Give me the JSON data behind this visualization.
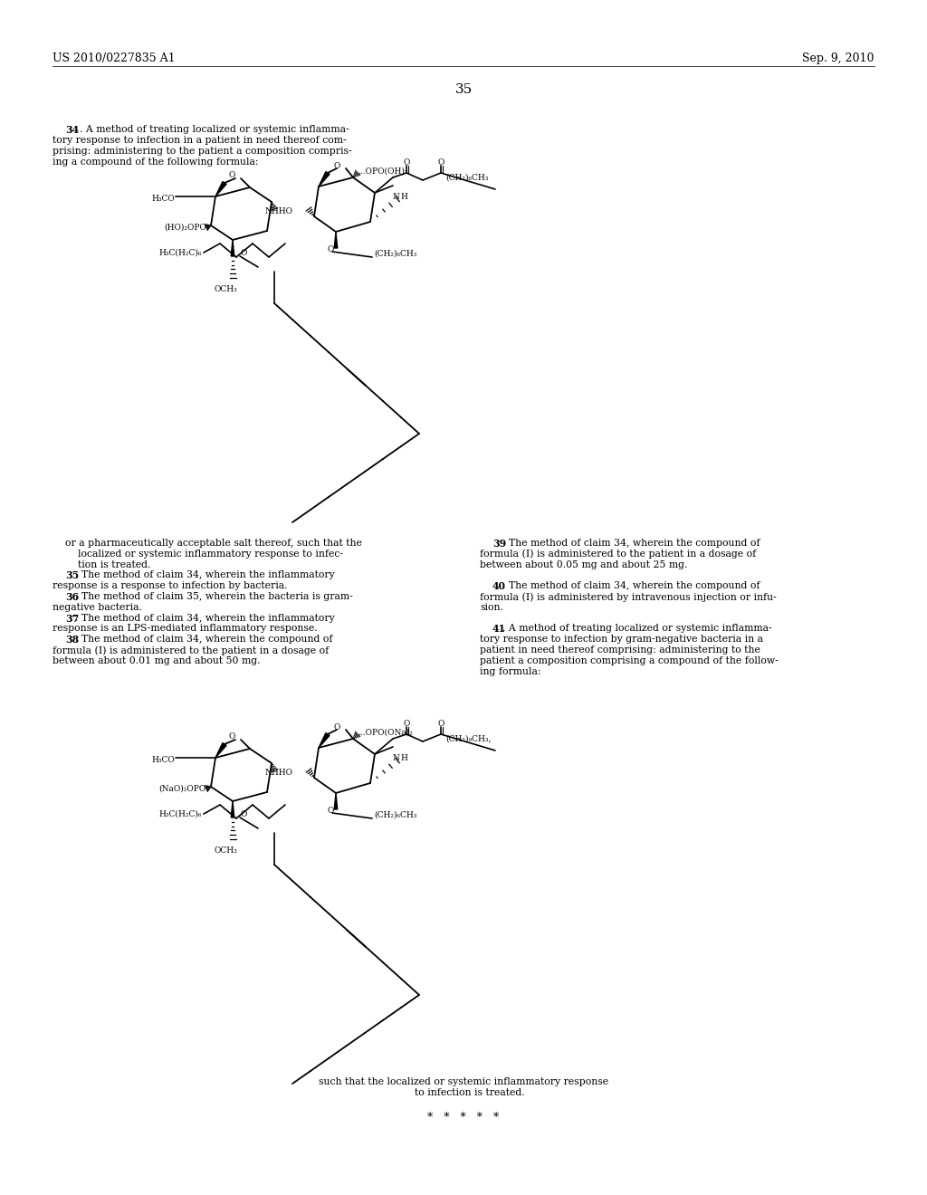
{
  "bg": "#ffffff",
  "header_left": "US 2010/0227835 A1",
  "header_right": "Sep. 9, 2010",
  "page_num": "35"
}
